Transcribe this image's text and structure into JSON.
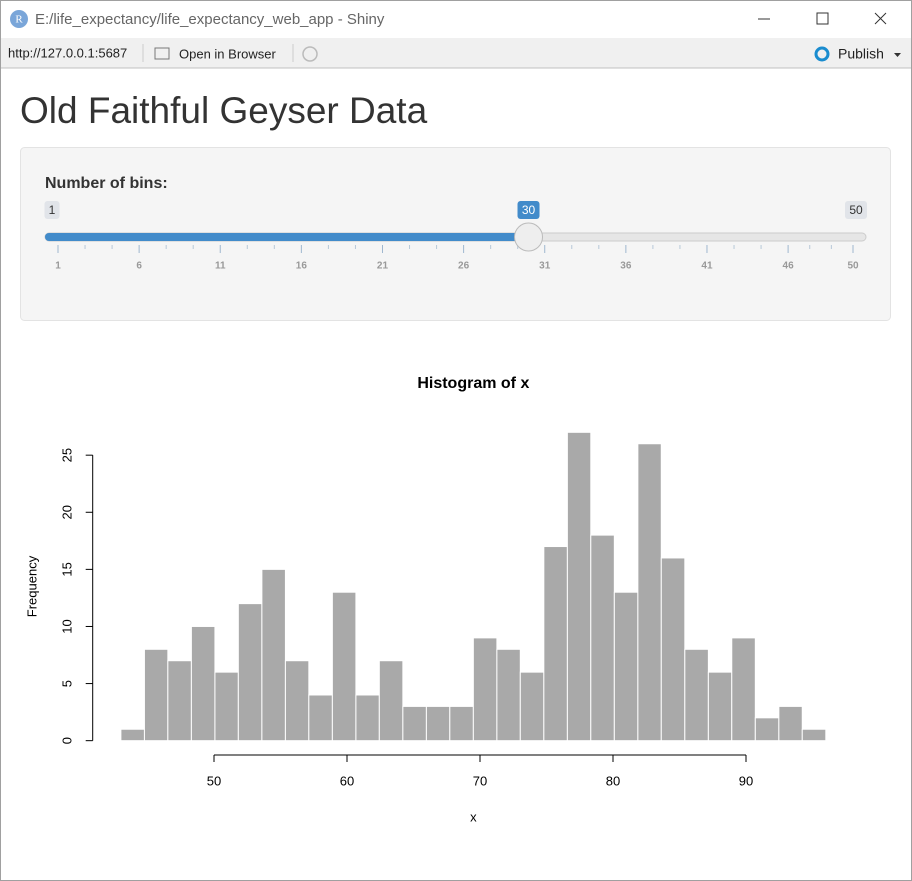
{
  "window": {
    "app_icon": "R",
    "title": "E:/life_expectancy/life_expectancy_web_app - Shiny",
    "url": "http://127.0.0.1:5687",
    "open_button": "Open in Browser",
    "publish_button": "Publish"
  },
  "page": {
    "heading": "Old Faithful Geyser Data"
  },
  "slider": {
    "label": "Number of bins:",
    "min": 1,
    "max": 50,
    "value": 30,
    "ticks": [
      1,
      6,
      11,
      16,
      21,
      26,
      31,
      36,
      41,
      46,
      50
    ]
  },
  "chart_data": {
    "type": "histogram",
    "title": "Histogram of x",
    "x_label": "x",
    "y_label": "Frequency",
    "bins": [
      43,
      44.77,
      46.53,
      48.3,
      50.07,
      51.83,
      53.6,
      55.37,
      57.13,
      58.9,
      60.67,
      62.43,
      64.2,
      65.97,
      67.73,
      69.5,
      71.27,
      73.03,
      74.8,
      76.57,
      78.33,
      80.1,
      81.87,
      83.63,
      85.4,
      87.17,
      88.93,
      90.7,
      92.47,
      94.23,
      96
    ],
    "values": [
      1,
      8,
      7,
      10,
      6,
      12,
      15,
      7,
      4,
      13,
      4,
      7,
      3,
      3,
      3,
      9,
      8,
      6,
      17,
      27,
      18,
      13,
      26,
      16,
      8,
      6,
      9,
      2,
      3,
      1
    ],
    "color": "#a9a9a9",
    "border_color": "#ffffff",
    "xlim": [
      40.88,
      98.12
    ],
    "ylim": [
      -1.08,
      28.08
    ],
    "xticks": [
      50,
      60,
      70,
      80,
      90
    ],
    "yticks": [
      0,
      5,
      10,
      15,
      20,
      25
    ]
  }
}
